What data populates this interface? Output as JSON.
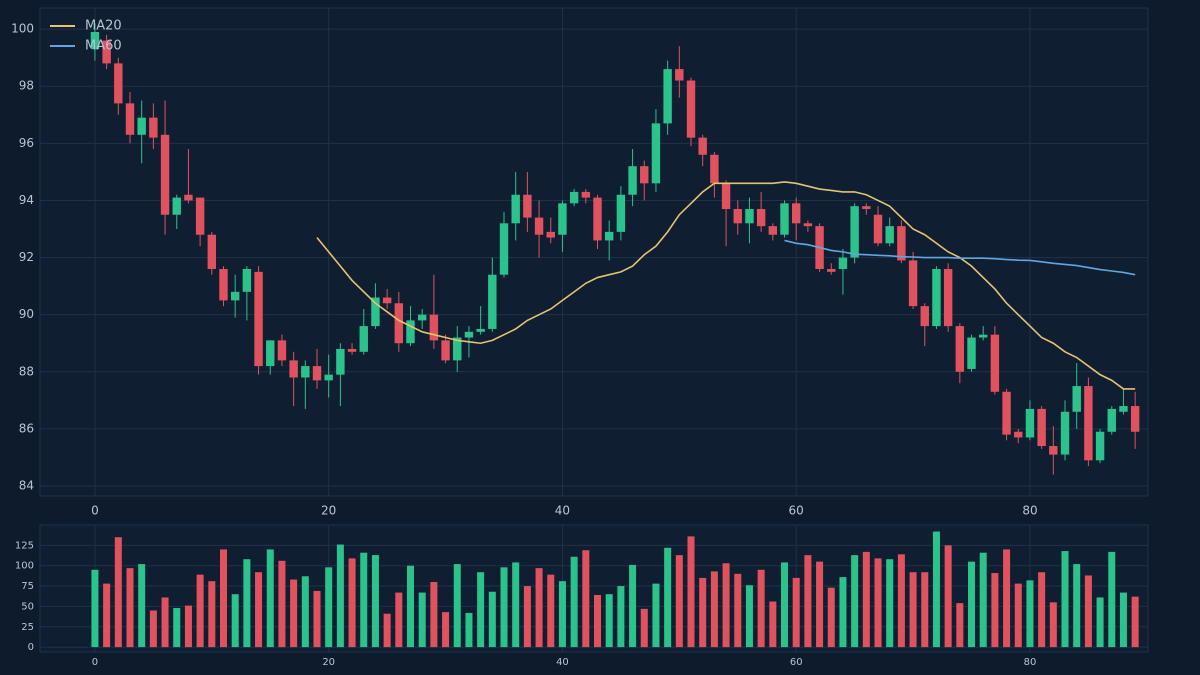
{
  "chart_data": {
    "type": "candlestick",
    "x": [
      0,
      1,
      2,
      3,
      4,
      5,
      6,
      7,
      8,
      9,
      10,
      11,
      12,
      13,
      14,
      15,
      16,
      17,
      18,
      19,
      20,
      21,
      22,
      23,
      24,
      25,
      26,
      27,
      28,
      29,
      30,
      31,
      32,
      33,
      34,
      35,
      36,
      37,
      38,
      39,
      40,
      41,
      42,
      43,
      44,
      45,
      46,
      47,
      48,
      49,
      50,
      51,
      52,
      53,
      54,
      55,
      56,
      57,
      58,
      59,
      60,
      61,
      62,
      63,
      64,
      65,
      66,
      67,
      68,
      69,
      70,
      71,
      72,
      73,
      74,
      75,
      76,
      77,
      78,
      79,
      80,
      81,
      82,
      83,
      84,
      85,
      86,
      87,
      88,
      89
    ],
    "open": [
      99.3,
      99.6,
      98.8,
      97.4,
      96.3,
      96.9,
      96.3,
      93.5,
      94.2,
      94.1,
      92.8,
      91.6,
      90.5,
      90.8,
      91.5,
      88.2,
      89.1,
      88.4,
      87.8,
      88.2,
      87.7,
      87.9,
      88.8,
      88.7,
      89.6,
      90.6,
      90.4,
      89.0,
      89.8,
      90.0,
      89.1,
      88.4,
      89.2,
      89.4,
      89.5,
      91.4,
      93.2,
      94.2,
      93.4,
      92.9,
      92.8,
      93.9,
      94.3,
      94.1,
      92.6,
      92.9,
      94.2,
      95.2,
      94.6,
      96.7,
      98.6,
      98.2,
      96.2,
      95.6,
      94.6,
      93.7,
      93.2,
      93.7,
      93.1,
      92.8,
      93.9,
      93.2,
      93.1,
      91.6,
      91.6,
      92.0,
      93.8,
      93.5,
      92.5,
      93.1,
      91.9,
      90.3,
      89.6,
      91.6,
      89.6,
      88.1,
      89.2,
      89.3,
      87.3,
      85.9,
      85.7,
      86.7,
      85.4,
      85.1,
      86.6,
      87.5,
      84.9,
      85.9,
      86.6,
      86.8
    ],
    "high": [
      100.2,
      99.8,
      99.0,
      97.8,
      97.5,
      97.4,
      97.5,
      94.2,
      95.8,
      94.1,
      92.9,
      91.7,
      91.4,
      91.7,
      91.7,
      89.1,
      89.3,
      88.7,
      88.4,
      88.8,
      88.6,
      89.0,
      89.0,
      90.2,
      91.1,
      90.9,
      90.8,
      90.3,
      90.2,
      91.4,
      89.3,
      89.6,
      89.6,
      90.3,
      92.0,
      93.6,
      95.0,
      95.0,
      94.0,
      93.4,
      94.0,
      94.4,
      94.4,
      94.2,
      93.3,
      94.5,
      95.8,
      95.4,
      97.2,
      98.9,
      99.4,
      98.3,
      96.3,
      95.7,
      94.7,
      94.0,
      94.1,
      94.3,
      93.2,
      94.0,
      94.1,
      93.3,
      93.2,
      91.8,
      92.3,
      93.9,
      93.9,
      93.8,
      93.4,
      93.3,
      92.2,
      90.4,
      91.7,
      91.8,
      89.7,
      89.3,
      89.6,
      89.6,
      87.4,
      86.0,
      87.0,
      86.8,
      86.1,
      87.0,
      88.3,
      87.8,
      86.0,
      86.8,
      87.4,
      87.3
    ],
    "low": [
      98.9,
      98.6,
      97.0,
      96.0,
      95.3,
      95.8,
      92.8,
      93.0,
      93.9,
      92.4,
      91.4,
      90.3,
      89.9,
      89.8,
      87.9,
      87.9,
      88.2,
      86.8,
      86.7,
      87.4,
      87.1,
      86.8,
      88.6,
      88.6,
      89.5,
      90.2,
      88.7,
      88.9,
      89.5,
      88.8,
      88.3,
      88.0,
      88.5,
      89.3,
      89.4,
      91.3,
      92.6,
      92.9,
      92.0,
      92.5,
      92.2,
      93.8,
      93.9,
      92.3,
      91.9,
      92.6,
      93.8,
      94.0,
      94.3,
      96.3,
      97.6,
      95.9,
      95.2,
      94.1,
      92.4,
      92.8,
      92.5,
      92.9,
      92.6,
      92.7,
      92.6,
      92.9,
      91.5,
      91.4,
      90.7,
      91.8,
      93.5,
      92.4,
      92.4,
      91.8,
      90.2,
      88.9,
      89.5,
      89.4,
      87.6,
      88.0,
      89.1,
      87.2,
      85.6,
      85.5,
      85.6,
      85.3,
      84.4,
      84.9,
      86.0,
      84.7,
      84.8,
      85.8,
      86.5,
      85.3
    ],
    "close": [
      99.9,
      98.8,
      97.4,
      96.3,
      96.9,
      96.2,
      93.5,
      94.1,
      94.0,
      92.8,
      91.6,
      90.5,
      90.8,
      91.6,
      88.2,
      89.1,
      88.4,
      87.8,
      88.2,
      87.7,
      87.9,
      88.8,
      88.7,
      89.6,
      90.6,
      90.4,
      89.0,
      89.8,
      90.0,
      89.1,
      88.4,
      89.2,
      89.4,
      89.5,
      91.4,
      93.2,
      94.2,
      93.4,
      92.8,
      92.7,
      93.9,
      94.3,
      94.1,
      92.6,
      92.9,
      94.2,
      95.2,
      94.6,
      96.7,
      98.6,
      98.2,
      96.2,
      95.6,
      94.6,
      93.7,
      93.2,
      93.7,
      93.1,
      92.8,
      93.9,
      93.2,
      93.1,
      91.6,
      91.5,
      92.0,
      93.8,
      93.7,
      92.5,
      93.1,
      91.9,
      90.3,
      89.6,
      91.6,
      89.6,
      88.0,
      89.2,
      89.3,
      87.3,
      85.8,
      85.7,
      86.7,
      85.4,
      85.1,
      86.6,
      87.5,
      84.9,
      85.9,
      86.7,
      86.8,
      85.9
    ],
    "volume": [
      95,
      78,
      135,
      97,
      102,
      45,
      61,
      48,
      51,
      89,
      81,
      120,
      65,
      108,
      92,
      120,
      106,
      83,
      87,
      69,
      98,
      126,
      109,
      116,
      113,
      41,
      67,
      100,
      67,
      80,
      43,
      102,
      42,
      92,
      68,
      98,
      104,
      75,
      97,
      89,
      81,
      111,
      119,
      64,
      65,
      75,
      101,
      47,
      78,
      122,
      113,
      136,
      85,
      93,
      103,
      90,
      76,
      95,
      56,
      104,
      85,
      113,
      105,
      73,
      86,
      113,
      117,
      109,
      108,
      114,
      92,
      92,
      142,
      125,
      54,
      105,
      116,
      91,
      120,
      78,
      82,
      92,
      55,
      118,
      102,
      88,
      61,
      117,
      67,
      62
    ],
    "up_color": "#2cc28b",
    "down_color": "#e0535e",
    "series": [
      {
        "name": "MA20",
        "color": "#e3c46f",
        "values": [
          null,
          null,
          null,
          null,
          null,
          null,
          null,
          null,
          null,
          null,
          null,
          null,
          null,
          null,
          null,
          null,
          null,
          null,
          null,
          92.7,
          92.2,
          91.7,
          91.2,
          90.8,
          90.4,
          90.1,
          89.8,
          89.6,
          89.4,
          89.3,
          89.2,
          89.1,
          89.05,
          89.0,
          89.1,
          89.3,
          89.5,
          89.8,
          90.0,
          90.2,
          90.5,
          90.8,
          91.1,
          91.3,
          91.4,
          91.5,
          91.7,
          92.1,
          92.4,
          92.9,
          93.5,
          93.9,
          94.3,
          94.6,
          94.6,
          94.6,
          94.6,
          94.6,
          94.6,
          94.65,
          94.6,
          94.5,
          94.4,
          94.35,
          94.3,
          94.3,
          94.2,
          94.0,
          93.8,
          93.4,
          93.0,
          92.8,
          92.5,
          92.2,
          92.0,
          91.7,
          91.3,
          90.9,
          90.4,
          90.0,
          89.6,
          89.2,
          89.0,
          88.7,
          88.5,
          88.2,
          87.9,
          87.7,
          87.4,
          87.4
        ]
      },
      {
        "name": "MA60",
        "color": "#5ea7e4",
        "values": [
          null,
          null,
          null,
          null,
          null,
          null,
          null,
          null,
          null,
          null,
          null,
          null,
          null,
          null,
          null,
          null,
          null,
          null,
          null,
          null,
          null,
          null,
          null,
          null,
          null,
          null,
          null,
          null,
          null,
          null,
          null,
          null,
          null,
          null,
          null,
          null,
          null,
          null,
          null,
          null,
          null,
          null,
          null,
          null,
          null,
          null,
          null,
          null,
          null,
          null,
          null,
          null,
          null,
          null,
          null,
          null,
          null,
          null,
          null,
          92.6,
          92.5,
          92.45,
          92.35,
          92.25,
          92.2,
          92.12,
          92.1,
          92.08,
          92.06,
          92.03,
          92.02,
          92.0,
          92.0,
          92.0,
          91.98,
          91.98,
          91.98,
          91.96,
          91.93,
          91.91,
          91.9,
          91.85,
          91.8,
          91.76,
          91.72,
          91.65,
          91.58,
          91.53,
          91.48,
          91.4
        ]
      }
    ],
    "xlim": [
      -4.7,
      90.1
    ],
    "xticks": [
      0,
      20,
      40,
      60,
      80
    ],
    "ylim": [
      83.65,
      100.74
    ],
    "yticks": [
      84,
      86,
      88,
      90,
      92,
      94,
      96,
      98,
      100
    ],
    "volume_ylim": [
      -6,
      150
    ],
    "volume_yticks": [
      0,
      25,
      50,
      75,
      100,
      125
    ],
    "grid": true,
    "legend": "upper left"
  }
}
